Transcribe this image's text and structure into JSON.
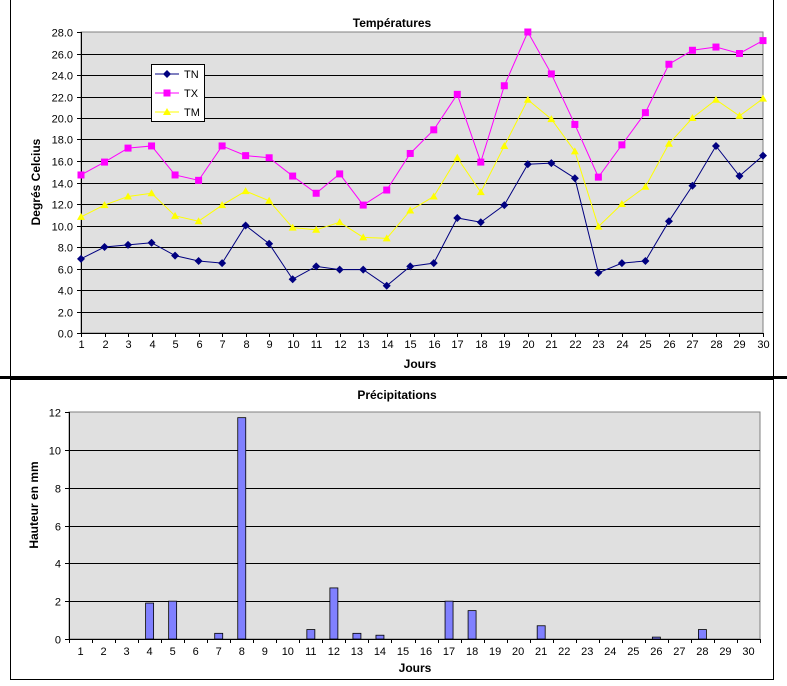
{
  "chart_data": [
    {
      "type": "line",
      "title": "Températures",
      "xlabel": "Jours",
      "ylabel": "Degrés Celcius",
      "ylim": [
        0,
        28
      ],
      "yticks": [
        "0.0",
        "2.0",
        "4.0",
        "6.0",
        "8.0",
        "10.0",
        "12.0",
        "14.0",
        "16.0",
        "18.0",
        "20.0",
        "22.0",
        "24.0",
        "26.0",
        "28.0"
      ],
      "grid": true,
      "legend": "top-left",
      "categories": [
        "1",
        "2",
        "3",
        "4",
        "5",
        "6",
        "7",
        "8",
        "9",
        "10",
        "11",
        "12",
        "13",
        "14",
        "15",
        "16",
        "17",
        "18",
        "19",
        "20",
        "21",
        "22",
        "23",
        "24",
        "25",
        "26",
        "27",
        "28",
        "29",
        "30"
      ],
      "series": [
        {
          "name": "TN",
          "color": "#000080",
          "marker": "diamond",
          "values": [
            6.9,
            8.0,
            8.2,
            8.4,
            7.2,
            6.7,
            6.5,
            10.0,
            8.3,
            5.0,
            6.2,
            5.9,
            5.9,
            4.4,
            6.2,
            6.5,
            10.7,
            10.3,
            11.9,
            15.7,
            15.8,
            14.4,
            5.6,
            6.5,
            6.7,
            10.4,
            13.7,
            17.4,
            14.6,
            16.5
          ]
        },
        {
          "name": "TX",
          "color": "#FF00FF",
          "marker": "square",
          "values": [
            14.7,
            15.9,
            17.2,
            17.4,
            14.7,
            14.2,
            17.4,
            16.5,
            16.3,
            14.6,
            13.0,
            14.8,
            11.9,
            13.3,
            16.7,
            18.9,
            22.2,
            15.9,
            23.0,
            28.0,
            24.1,
            19.4,
            14.5,
            17.5,
            20.5,
            25.0,
            26.3,
            26.6,
            26.0,
            27.2
          ]
        },
        {
          "name": "TM",
          "color": "#FFFF00",
          "marker": "triangle",
          "values": [
            10.8,
            11.9,
            12.7,
            13.0,
            10.9,
            10.4,
            11.9,
            13.2,
            12.3,
            9.8,
            9.6,
            10.3,
            8.9,
            8.8,
            11.4,
            12.7,
            16.3,
            13.1,
            17.4,
            21.7,
            19.9,
            16.9,
            9.9,
            12.0,
            13.6,
            17.6,
            20.0,
            21.7,
            20.2,
            21.8
          ]
        }
      ]
    },
    {
      "type": "bar",
      "title": "Précipitations",
      "xlabel": "Jours",
      "ylabel": "Hauteur en mm",
      "ylim": [
        0,
        12
      ],
      "yticks": [
        "0",
        "2",
        "4",
        "6",
        "8",
        "10",
        "12"
      ],
      "grid": true,
      "color": "#8080FF",
      "categories": [
        "1",
        "2",
        "3",
        "4",
        "5",
        "6",
        "7",
        "8",
        "9",
        "10",
        "11",
        "12",
        "13",
        "14",
        "15",
        "16",
        "17",
        "18",
        "19",
        "20",
        "21",
        "22",
        "23",
        "24",
        "25",
        "26",
        "27",
        "28",
        "29",
        "30"
      ],
      "values": [
        0,
        0,
        0,
        1.9,
        2.0,
        0,
        0.3,
        11.7,
        0,
        0,
        0.5,
        2.7,
        0.3,
        0.2,
        0,
        0,
        2.0,
        1.5,
        0,
        0,
        0.7,
        0,
        0,
        0,
        0,
        0.1,
        0,
        0.5,
        0,
        0
      ]
    }
  ]
}
